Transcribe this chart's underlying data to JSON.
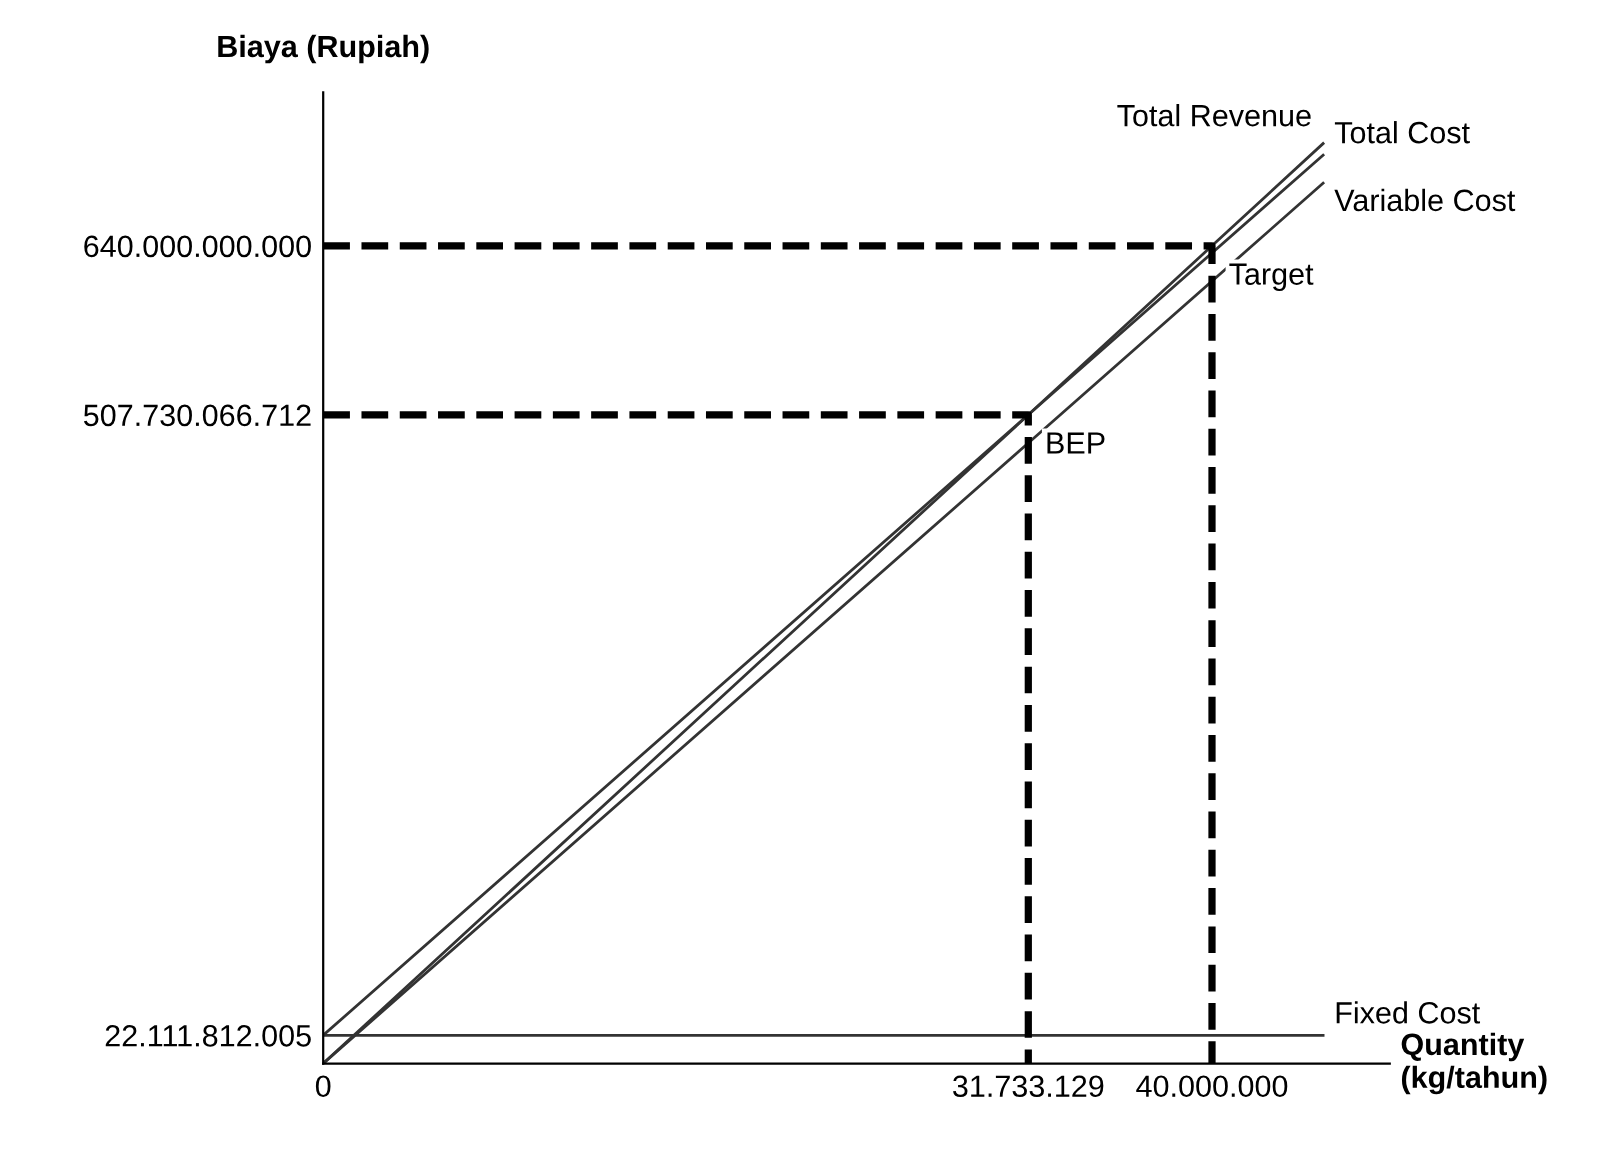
{
  "chart_data": {
    "type": "line",
    "xlabel": "Quantity\n(kg/tahun)",
    "ylabel": "Biaya (Rupiah)",
    "xlim": [
      0,
      48000000
    ],
    "ylim": [
      0,
      760000000000
    ],
    "xticks": [
      0,
      {
        "value": 31733129,
        "label": "31.733.129"
      },
      {
        "value": 40000000,
        "label": "40.000.000"
      }
    ],
    "yticks": [
      {
        "value": 22111812005,
        "label": "22.111.812.005"
      },
      {
        "value": 507730066712,
        "label": "507.730.066.712"
      },
      {
        "value": 640000000000,
        "label": "640.000.000.000"
      }
    ],
    "grid": false,
    "legend": false,
    "marker": "none",
    "series": [
      {
        "name": "Total Revenue",
        "color": "#333333",
        "x": [
          0,
          31733129,
          40000000,
          45000000
        ],
        "values": [
          0,
          507730066712,
          640000000000,
          720000000000
        ]
      },
      {
        "name": "Total Cost",
        "color": "#333333",
        "x": [
          0,
          31733129,
          45000000
        ],
        "values": [
          22111812005,
          507730066712,
          711000000000
        ]
      },
      {
        "name": "Variable Cost",
        "color": "#333333",
        "x": [
          0,
          31733129,
          45000000
        ],
        "values": [
          0,
          485618254707,
          689000000000
        ]
      },
      {
        "name": "Fixed Cost",
        "color": "#333333",
        "x": [
          0,
          45000000
        ],
        "values": [
          22111812005,
          22111812005
        ]
      },
      {
        "color": "#000000",
        "line_style": "dashed",
        "x": [
          0,
          31733129,
          31733129
        ],
        "values": [
          507730066712,
          507730066712,
          0
        ]
      },
      {
        "color": "#000000",
        "line_style": "dashed",
        "x": [
          0,
          40000000,
          40000000
        ],
        "values": [
          640000000000,
          640000000000,
          0
        ]
      }
    ],
    "annotations": [
      {
        "text": "BEP",
        "x": 31733129,
        "y": 507730066712
      },
      {
        "text": "Target",
        "x": 40000000,
        "y": 640000000000
      }
    ]
  }
}
